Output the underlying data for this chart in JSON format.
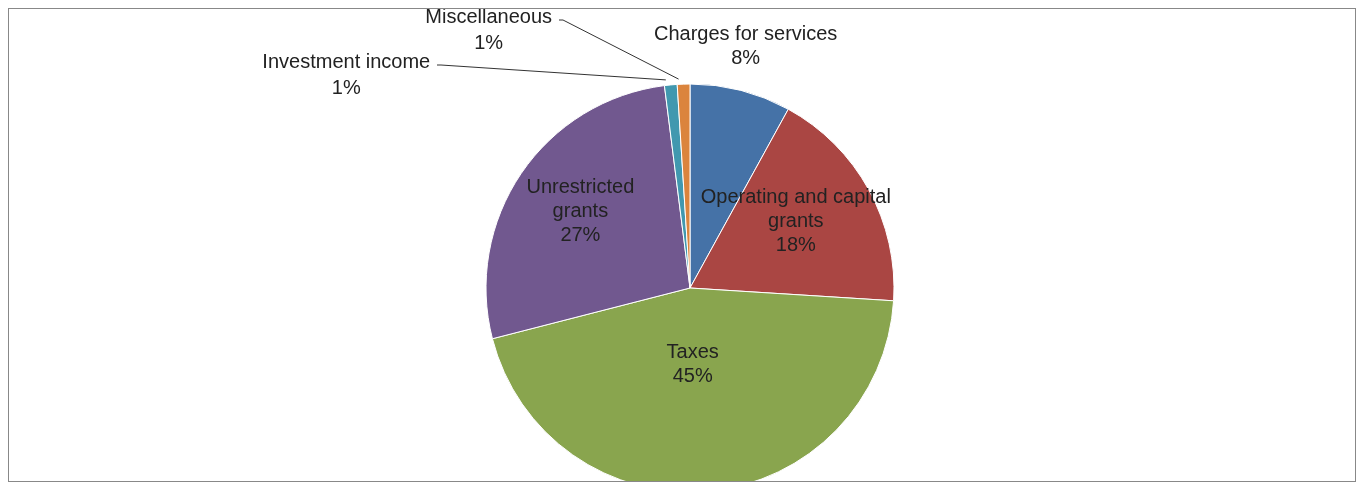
{
  "chart_data": {
    "type": "pie",
    "categories": [
      "Charges for services",
      "Operating and capital grants",
      "Taxes",
      "Unrestricted grants",
      "Investment income",
      "Miscellaneous"
    ],
    "values": [
      8,
      18,
      45,
      27,
      1,
      1
    ],
    "value_labels": [
      "8%",
      "18%",
      "45%",
      "27%",
      "1%",
      "1%"
    ],
    "colors": [
      "#4572a7",
      "#aa4643",
      "#89a54e",
      "#71588f",
      "#4198af",
      "#db843d"
    ]
  }
}
